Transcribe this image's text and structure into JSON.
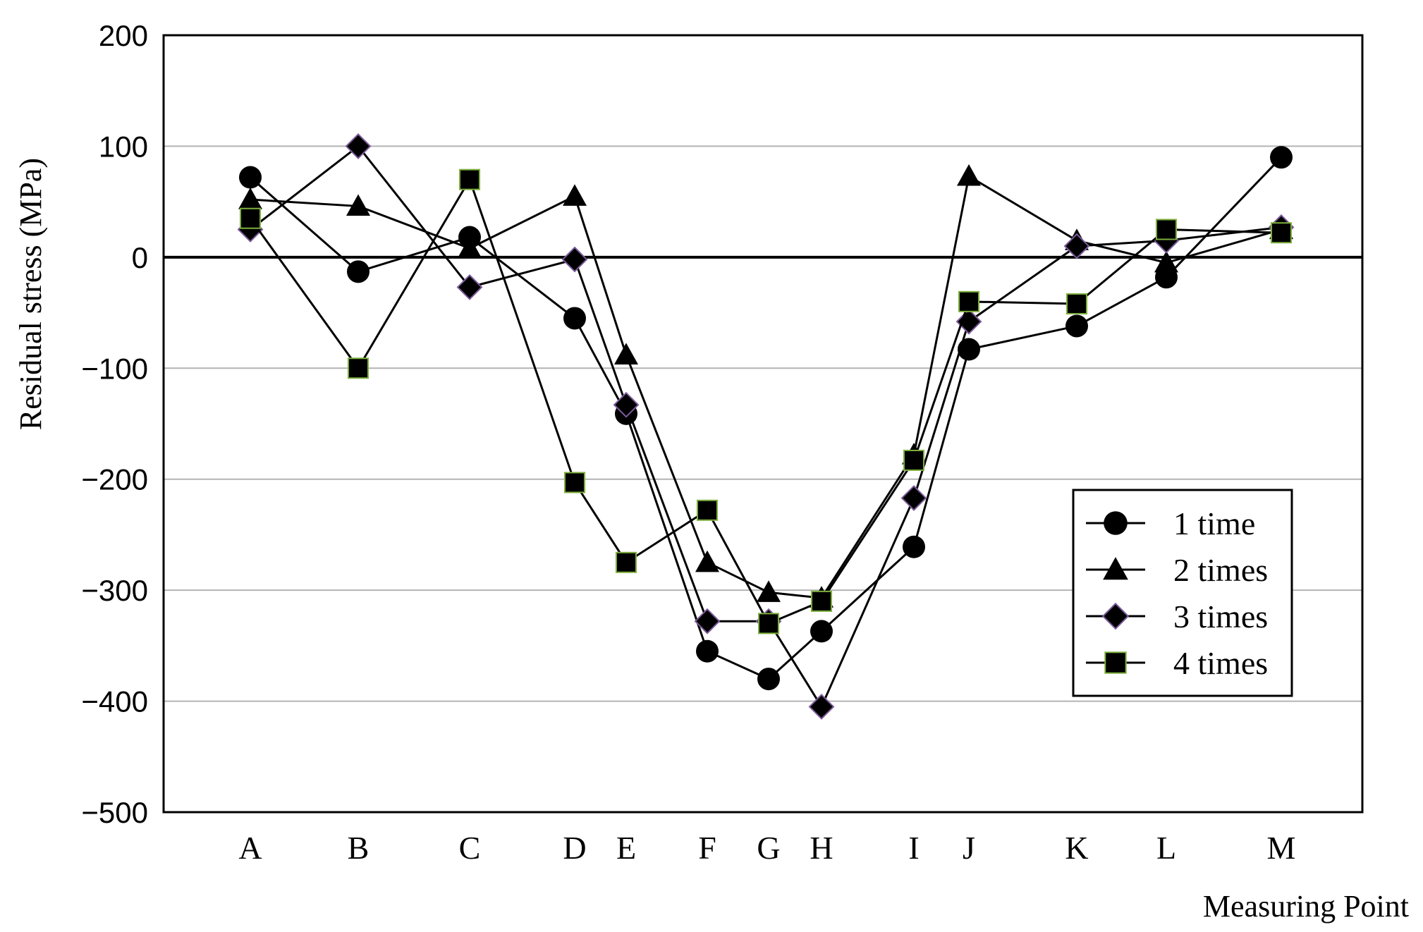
{
  "chart_data": {
    "type": "line",
    "title": "",
    "xlabel": "Measuring Point",
    "ylabel": "Residual stress (MPa)",
    "ylim": [
      -500,
      200
    ],
    "yticks": [
      200,
      100,
      0,
      -100,
      -200,
      -300,
      -400,
      -500
    ],
    "ytick_labels": [
      "200",
      "100",
      "0",
      "−100",
      "−200",
      "−300",
      "−400",
      "−500"
    ],
    "grid": true,
    "legend_position": "right",
    "categories": [
      "A",
      "B",
      "C",
      "D",
      "E",
      "F",
      "G",
      "H",
      "I",
      "J",
      "K",
      "L",
      "M"
    ],
    "series": [
      {
        "name": "1 time",
        "marker": "circle",
        "values": [
          72,
          -13,
          18,
          -55,
          -141,
          -355,
          -380,
          -337,
          -261,
          -83,
          -62,
          -18,
          90
        ]
      },
      {
        "name": "2 times",
        "marker": "triangle",
        "values": [
          52,
          46,
          8,
          55,
          -88,
          -275,
          -302,
          -307,
          -178,
          73,
          15,
          -5,
          25
        ]
      },
      {
        "name": "3 times",
        "marker": "diamond",
        "values": [
          25,
          100,
          -27,
          -2,
          -133,
          -328,
          -328,
          -405,
          -217,
          -58,
          10,
          15,
          27
        ]
      },
      {
        "name": "4 times",
        "marker": "square",
        "values": [
          35,
          -100,
          70,
          -203,
          -275,
          -228,
          -330,
          -310,
          -183,
          -40,
          -42,
          25,
          22
        ]
      }
    ]
  }
}
